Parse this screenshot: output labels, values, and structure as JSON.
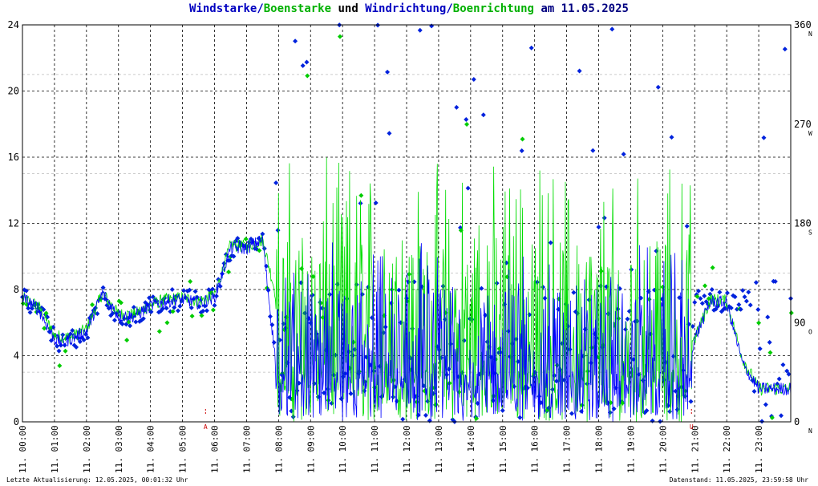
{
  "title": {
    "part1": "Windstarke",
    "sep1": "/",
    "part2": "Boenstarke",
    "mid": " und ",
    "part3": "Windrichtung",
    "sep2": "/",
    "part4": "Boenrichtung",
    "tail": " am 11.05.2025"
  },
  "footer": {
    "left": "Letzte Aktualisierung: 12.05.2025, 00:01:32 Uhr",
    "right": "Datenstand: 11.05.2025, 23:59:58 Uhr"
  },
  "colors": {
    "wind": "#0000ff",
    "gust": "#00dd00",
    "dir_wind": "#0022dd",
    "dir_gust": "#00cc00",
    "marker": "#cc0000",
    "grid": "#000000"
  },
  "chart_data": {
    "type": "line",
    "date": "11.05.2025",
    "x_unit": "hour of day",
    "xlim": [
      0,
      24
    ],
    "ylim": [
      0,
      24
    ],
    "y_ticks": [
      "0",
      "4",
      "8",
      "12",
      "16",
      "20",
      "24"
    ],
    "y2lim": [
      0,
      360
    ],
    "y2_ticks": [
      "0",
      "90",
      "180",
      "270",
      "360"
    ],
    "y2_dir_letters": [
      {
        "value": 0,
        "label": "N"
      },
      {
        "value": 90,
        "label": "O"
      },
      {
        "value": 180,
        "label": "S"
      },
      {
        "value": 270,
        "label": "W"
      },
      {
        "value": 360,
        "label": "N"
      }
    ],
    "x_tick_labels": [
      "11. 00:00",
      "11. 01:00",
      "11. 02:00",
      "11. 03:00",
      "11. 04:00",
      "11. 05:00",
      "11. 06:00",
      "11. 07:00",
      "11. 08:00",
      "11. 09:00",
      "11. 10:00",
      "11. 11:00",
      "11. 12:00",
      "11. 13:00",
      "11. 14:00",
      "11. 15:00",
      "11. 16:00",
      "11. 17:00",
      "11. 18:00",
      "11. 19:00",
      "11. 20:00",
      "11. 21:00",
      "11. 22:00",
      "11. 23:00"
    ],
    "markers": [
      {
        "hour": 5.72,
        "label": "A"
      },
      {
        "hour": 20.9,
        "label": "U"
      }
    ],
    "grid": true,
    "series": [
      {
        "name": "Windstarke",
        "color": "#0000ff",
        "hours": [
          0,
          0.5,
          1,
          1.25,
          1.5,
          2,
          2.5,
          3,
          3.5,
          4,
          4.5,
          5,
          5.5,
          6,
          6.5,
          7,
          7.5,
          8,
          8.5,
          9,
          9.5,
          10,
          10.5,
          11,
          11.5,
          12,
          12.5,
          13,
          13.5,
          14,
          14.5,
          15,
          15.5,
          16,
          16.5,
          17,
          17.5,
          18,
          18.5,
          19,
          19.5,
          20,
          20.5,
          21,
          21.5,
          22,
          22.5,
          23,
          23.5,
          24
        ],
        "values": [
          7.5,
          6.8,
          5.0,
          4.8,
          5.0,
          5.5,
          7.8,
          6.4,
          6.4,
          7.0,
          7.3,
          7.4,
          7.2,
          7.5,
          10.5,
          10.5,
          11,
          2,
          2,
          2,
          2,
          2,
          2,
          2,
          2,
          2,
          2,
          2,
          2,
          2,
          2,
          2,
          2,
          2,
          2,
          2,
          2,
          2,
          2,
          2,
          2,
          2,
          2,
          5.0,
          7.3,
          7.2,
          3.5,
          2,
          2,
          2
        ]
      },
      {
        "name": "Boenstarke",
        "color": "#00dd00",
        "hours": [
          0,
          0.5,
          1,
          1.5,
          2,
          2.5,
          3,
          3.5,
          4,
          4.5,
          5,
          5.5,
          6,
          6.5,
          7,
          7.5,
          8,
          8.5,
          9,
          9.5,
          10,
          10.5,
          11,
          11.5,
          12,
          12.5,
          13,
          13.5,
          14,
          14.5,
          15,
          15.5,
          16,
          16.5,
          17,
          17.5,
          18,
          18.5,
          19,
          19.5,
          20,
          20.5,
          21,
          21.5,
          22,
          22.5,
          23,
          23.5,
          24
        ],
        "values": [
          7.5,
          7.0,
          5.2,
          5.1,
          5.6,
          7.8,
          6.5,
          6.5,
          7.1,
          7.4,
          7.5,
          7.3,
          7.6,
          10.7,
          10.6,
          11,
          7,
          8,
          7,
          7,
          8,
          8,
          9,
          10,
          11,
          11,
          10,
          10,
          9,
          9,
          9,
          8,
          8,
          8,
          8,
          7,
          7,
          7,
          6,
          6,
          6,
          5,
          5,
          7.4,
          7.3,
          3.8,
          2,
          2,
          2
        ]
      }
    ]
  }
}
